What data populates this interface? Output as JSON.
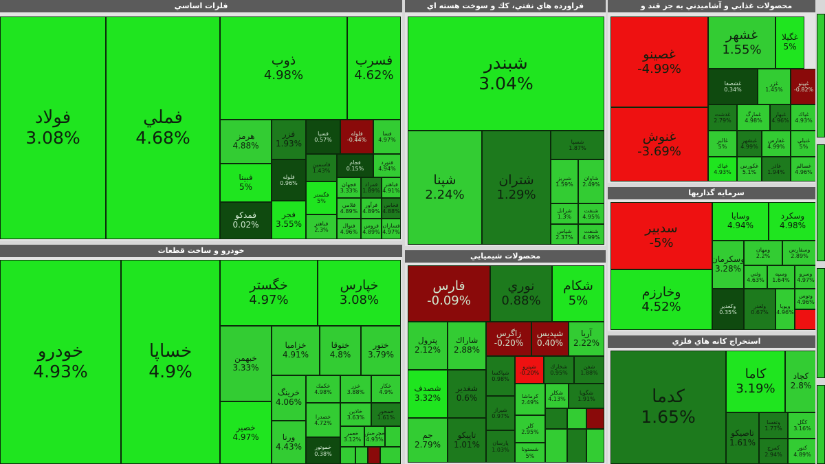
{
  "colors": {
    "bright_green": "#1fe51f",
    "green": "#33cc33",
    "dark_green": "#1d7a1d",
    "very_dark_green": "#0f4a0f",
    "red": "#ee1111",
    "dark_red": "#8a0a0a"
  },
  "sectors": [
    {
      "key": "basic_metals",
      "title": "فلزات اساسي",
      "tiles": [
        {
          "name": "فولاد",
          "pct": "3.08%"
        },
        {
          "name": "فملي",
          "pct": "4.68%"
        },
        {
          "name": "ذوب",
          "pct": "4.98%"
        },
        {
          "name": "فسرب",
          "pct": "4.62%"
        },
        {
          "name": "هرمز",
          "pct": "4.88%"
        },
        {
          "name": "فزر",
          "pct": "1.93%"
        },
        {
          "name": "فسپا",
          "pct": "0.57%"
        },
        {
          "name": "فلوله",
          "pct": "-0.44%"
        },
        {
          "name": "فسا",
          "pct": "4.97%"
        },
        {
          "name": "فنورد",
          "pct": "4.94%"
        },
        {
          "name": "فبينا",
          "pct": "5%"
        },
        {
          "name": "فلوله",
          "pct": "0.96%"
        },
        {
          "name": "فاسمين",
          "pct": "1.43%"
        },
        {
          "name": "فجام",
          "pct": "0.15%"
        },
        {
          "name": "فمراد",
          "pct": "1.89%"
        },
        {
          "name": "فجهان",
          "pct": "3.33%"
        },
        {
          "name": "فگستر",
          "pct": "5%"
        },
        {
          "name": "فلامي",
          "pct": "4.89%"
        },
        {
          "name": "فباهنر",
          "pct": "4.91%"
        },
        {
          "name": "فرآور",
          "pct": "4.89%"
        },
        {
          "name": "فخاس",
          "pct": "4.88%"
        },
        {
          "name": "فمدکو",
          "pct": "0.02%"
        },
        {
          "name": "فجر",
          "pct": "3.55%"
        },
        {
          "name": "فباهنر",
          "pct": "2.3%"
        },
        {
          "name": "فنوال",
          "pct": "4.96%"
        },
        {
          "name": "فروس",
          "pct": "4.89%"
        },
        {
          "name": "فسازان",
          "pct": "4.97%"
        }
      ]
    },
    {
      "key": "oil_products",
      "title": "فراورده هاي نفتي، كك و سوخت هسته اي",
      "tiles": [
        {
          "name": "شبندر",
          "pct": "3.04%"
        },
        {
          "name": "شپنا",
          "pct": "2.24%"
        },
        {
          "name": "شتران",
          "pct": "1.29%"
        },
        {
          "name": "شسپا",
          "pct": "1.87%"
        },
        {
          "name": "شبريز",
          "pct": "1.59%"
        },
        {
          "name": "شاوان",
          "pct": "2.49%"
        },
        {
          "name": "شرانل",
          "pct": "1.3%"
        },
        {
          "name": "شنفت",
          "pct": "4.95%"
        },
        {
          "name": "شپاس",
          "pct": "2.37%"
        },
        {
          "name": "شنفت",
          "pct": "4.99%"
        }
      ]
    },
    {
      "key": "food",
      "title": "محصولات غذايي و آشاميدني به جز قند و",
      "tiles": [
        {
          "name": "غصينو",
          "pct": "-4.99%"
        },
        {
          "name": "غشهر",
          "pct": "1.55%"
        },
        {
          "name": "غگيلا",
          "pct": "5%"
        },
        {
          "name": "غنوش",
          "pct": "-3.69%"
        },
        {
          "name": "غشصفا",
          "pct": "0.34%"
        },
        {
          "name": "غزر",
          "pct": "1.45%"
        },
        {
          "name": "غپينو",
          "pct": "-0.82%"
        },
        {
          "name": "غدشت",
          "pct": "2.79%"
        },
        {
          "name": "غمارگ",
          "pct": "4.98%"
        },
        {
          "name": "غبهار",
          "pct": "4.96%"
        },
        {
          "name": "غپاك",
          "pct": "4.93%"
        },
        {
          "name": "غالبر",
          "pct": "5%"
        },
        {
          "name": "غبشهر",
          "pct": "4.99%"
        },
        {
          "name": "غفارس",
          "pct": "4.99%"
        },
        {
          "name": "غنيلي",
          "pct": "5%"
        },
        {
          "name": "غپاك",
          "pct": "4.93%"
        },
        {
          "name": "غکورس",
          "pct": "5.1%"
        },
        {
          "name": "غاذر",
          "pct": "1.94%"
        },
        {
          "name": "غسالم",
          "pct": "4.96%"
        }
      ]
    },
    {
      "key": "investment",
      "title": "سرمايه گذاريها",
      "tiles": [
        {
          "name": "سدبير",
          "pct": "-5%"
        },
        {
          "name": "وسايا",
          "pct": "4.94%"
        },
        {
          "name": "وسكرد",
          "pct": "4.98%"
        },
        {
          "name": "وخارزم",
          "pct": "4.52%"
        },
        {
          "name": "وسكرمان",
          "pct": "3.28%"
        },
        {
          "name": "ومهان",
          "pct": "2.2%"
        },
        {
          "name": "وسفارس",
          "pct": "2.89%"
        },
        {
          "name": "وثني",
          "pct": "4.63%"
        },
        {
          "name": "وسپه",
          "pct": "1.64%"
        },
        {
          "name": "وسرو",
          "pct": "4.97%"
        },
        {
          "name": "وتوس",
          "pct": "4.96%"
        },
        {
          "name": "وكغدير",
          "pct": "0.35%"
        },
        {
          "name": "ولغدر",
          "pct": "0.67%"
        },
        {
          "name": "وپويا",
          "pct": "4.96%"
        }
      ]
    },
    {
      "key": "chemicals",
      "title": "محصولات شيميايي",
      "tiles": [
        {
          "name": "فارس",
          "pct": "-0.09%"
        },
        {
          "name": "نوري",
          "pct": "0.88%"
        },
        {
          "name": "شكام",
          "pct": "5%"
        },
        {
          "name": "زاگرس",
          "pct": "-0.20%"
        },
        {
          "name": "شپديس",
          "pct": "0.40%"
        },
        {
          "name": "آريا",
          "pct": "2.22%"
        },
        {
          "name": "پترول",
          "pct": "2.12%"
        },
        {
          "name": "شاراك",
          "pct": "2.88%"
        },
        {
          "name": "شپاكسا",
          "pct": "0.98%"
        },
        {
          "name": "شپترو",
          "pct": "-0.20%"
        },
        {
          "name": "شخارك",
          "pct": "0.95%"
        },
        {
          "name": "شفن",
          "pct": "1.88%"
        },
        {
          "name": "شصدف",
          "pct": "3.32%"
        },
        {
          "name": "شغدير",
          "pct": "0.6%"
        },
        {
          "name": "شيراز",
          "pct": "0.97%"
        },
        {
          "name": "كرماشا",
          "pct": "2.49%"
        },
        {
          "name": "شكلر",
          "pct": "4.13%"
        },
        {
          "name": "شگويا",
          "pct": "1.91%"
        },
        {
          "name": "جم",
          "pct": "2.79%"
        },
        {
          "name": "تاپيكو",
          "pct": "1.01%"
        },
        {
          "name": "پارسان",
          "pct": "1.03%"
        },
        {
          "name": "كلر",
          "pct": "2.95%"
        },
        {
          "name": "شستونا",
          "pct": "5%"
        }
      ]
    },
    {
      "key": "autos",
      "title": "خودرو و ساخت قطعات",
      "tiles": [
        {
          "name": "خودرو",
          "pct": "4.93%"
        },
        {
          "name": "خساپا",
          "pct": "4.9%"
        },
        {
          "name": "خگستر",
          "pct": "4.97%"
        },
        {
          "name": "خپارس",
          "pct": "3.08%"
        },
        {
          "name": "خبهمن",
          "pct": "3.33%"
        },
        {
          "name": "خزاميا",
          "pct": "4.91%"
        },
        {
          "name": "ختوقا",
          "pct": "4.8%"
        },
        {
          "name": "ختور",
          "pct": "3.79%"
        },
        {
          "name": "خرينگ",
          "pct": "4.06%"
        },
        {
          "name": "خكمك",
          "pct": "4.98%"
        },
        {
          "name": "خزر",
          "pct": "3.88%"
        },
        {
          "name": "خكار",
          "pct": "4.9%"
        },
        {
          "name": "خاذين",
          "pct": "3.63%"
        },
        {
          "name": "خمحور",
          "pct": "1.61%"
        },
        {
          "name": "خصدرا",
          "pct": "4.72%"
        },
        {
          "name": "خعمر",
          "pct": "3.12%"
        },
        {
          "name": "خصير",
          "pct": "4.97%"
        },
        {
          "name": "ورنا",
          "pct": "4.43%"
        },
        {
          "name": "خموتور",
          "pct": "0.38%"
        },
        {
          "name": "خچرخش",
          "pct": "4.93%"
        }
      ]
    },
    {
      "key": "mining",
      "title": "استخراج كانه هاي فلزي",
      "tiles": [
        {
          "name": "كدما",
          "pct": "1.65%"
        },
        {
          "name": "كاما",
          "pct": "3.19%"
        },
        {
          "name": "كچاد",
          "pct": "2.8%"
        },
        {
          "name": "تاصيكو",
          "pct": "1.61%"
        },
        {
          "name": "وتفسا",
          "pct": "1.77%"
        },
        {
          "name": "كگل",
          "pct": "3.16%"
        },
        {
          "name": "كمرج",
          "pct": "2.94%"
        },
        {
          "name": "كنور",
          "pct": "4.89%"
        }
      ]
    }
  ]
}
